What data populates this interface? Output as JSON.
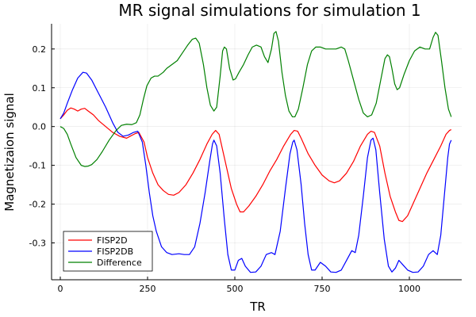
{
  "chart_data": {
    "type": "line",
    "title": "MR signal simulations for simulation 1",
    "xlabel": "TR",
    "ylabel": "Magnetizaion signal",
    "xlim": [
      -25,
      1150
    ],
    "ylim": [
      -0.395,
      0.265
    ],
    "xticks": [
      0,
      250,
      500,
      750,
      1000
    ],
    "xtick_labels": [
      "0",
      "250",
      "500",
      "750",
      "1000"
    ],
    "yticks": [
      -0.3,
      -0.2,
      -0.1,
      0.0,
      0.1,
      0.2
    ],
    "ytick_labels": [
      "-0.3",
      "-0.2",
      "-0.1",
      "0.0",
      "0.1",
      "0.2"
    ],
    "grid": true,
    "legend_position": "bottom-left",
    "series": [
      {
        "name": "FISP2D",
        "color": "#ff0000",
        "points": [
          [
            0,
            0.02
          ],
          [
            10,
            0.03
          ],
          [
            20,
            0.042
          ],
          [
            30,
            0.048
          ],
          [
            40,
            0.045
          ],
          [
            50,
            0.04
          ],
          [
            60,
            0.045
          ],
          [
            70,
            0.047
          ],
          [
            80,
            0.04
          ],
          [
            95,
            0.03
          ],
          [
            110,
            0.015
          ],
          [
            130,
            0.0
          ],
          [
            150,
            -0.015
          ],
          [
            170,
            -0.025
          ],
          [
            190,
            -0.03
          ],
          [
            200,
            -0.025
          ],
          [
            215,
            -0.018
          ],
          [
            225,
            -0.015
          ],
          [
            240,
            -0.04
          ],
          [
            250,
            -0.08
          ],
          [
            265,
            -0.12
          ],
          [
            280,
            -0.15
          ],
          [
            295,
            -0.165
          ],
          [
            310,
            -0.175
          ],
          [
            325,
            -0.177
          ],
          [
            340,
            -0.17
          ],
          [
            360,
            -0.15
          ],
          [
            380,
            -0.12
          ],
          [
            400,
            -0.085
          ],
          [
            420,
            -0.045
          ],
          [
            435,
            -0.02
          ],
          [
            445,
            -0.01
          ],
          [
            455,
            -0.02
          ],
          [
            470,
            -0.08
          ],
          [
            490,
            -0.16
          ],
          [
            505,
            -0.2
          ],
          [
            515,
            -0.22
          ],
          [
            525,
            -0.22
          ],
          [
            540,
            -0.205
          ],
          [
            560,
            -0.18
          ],
          [
            580,
            -0.15
          ],
          [
            600,
            -0.115
          ],
          [
            620,
            -0.085
          ],
          [
            640,
            -0.05
          ],
          [
            660,
            -0.02
          ],
          [
            670,
            -0.01
          ],
          [
            680,
            -0.012
          ],
          [
            690,
            -0.03
          ],
          [
            710,
            -0.07
          ],
          [
            730,
            -0.1
          ],
          [
            750,
            -0.125
          ],
          [
            770,
            -0.14
          ],
          [
            785,
            -0.145
          ],
          [
            800,
            -0.14
          ],
          [
            820,
            -0.12
          ],
          [
            840,
            -0.09
          ],
          [
            860,
            -0.05
          ],
          [
            880,
            -0.02
          ],
          [
            890,
            -0.012
          ],
          [
            900,
            -0.015
          ],
          [
            915,
            -0.05
          ],
          [
            930,
            -0.12
          ],
          [
            945,
            -0.18
          ],
          [
            960,
            -0.22
          ],
          [
            970,
            -0.242
          ],
          [
            980,
            -0.245
          ],
          [
            995,
            -0.23
          ],
          [
            1010,
            -0.2
          ],
          [
            1030,
            -0.16
          ],
          [
            1050,
            -0.12
          ],
          [
            1070,
            -0.085
          ],
          [
            1090,
            -0.05
          ],
          [
            1105,
            -0.02
          ],
          [
            1115,
            -0.01
          ],
          [
            1120,
            -0.008
          ]
        ]
      },
      {
        "name": "FISP2DB",
        "color": "#0000ff",
        "points": [
          [
            0,
            0.02
          ],
          [
            10,
            0.035
          ],
          [
            20,
            0.06
          ],
          [
            35,
            0.095
          ],
          [
            50,
            0.125
          ],
          [
            65,
            0.14
          ],
          [
            75,
            0.138
          ],
          [
            90,
            0.12
          ],
          [
            110,
            0.085
          ],
          [
            130,
            0.05
          ],
          [
            150,
            0.01
          ],
          [
            165,
            -0.015
          ],
          [
            180,
            -0.025
          ],
          [
            195,
            -0.022
          ],
          [
            210,
            -0.015
          ],
          [
            222,
            -0.012
          ],
          [
            235,
            -0.04
          ],
          [
            245,
            -0.1
          ],
          [
            255,
            -0.17
          ],
          [
            265,
            -0.23
          ],
          [
            275,
            -0.27
          ],
          [
            290,
            -0.31
          ],
          [
            305,
            -0.325
          ],
          [
            320,
            -0.33
          ],
          [
            340,
            -0.328
          ],
          [
            355,
            -0.33
          ],
          [
            370,
            -0.33
          ],
          [
            385,
            -0.31
          ],
          [
            400,
            -0.25
          ],
          [
            415,
            -0.17
          ],
          [
            428,
            -0.09
          ],
          [
            436,
            -0.045
          ],
          [
            440,
            -0.035
          ],
          [
            448,
            -0.05
          ],
          [
            458,
            -0.12
          ],
          [
            470,
            -0.24
          ],
          [
            480,
            -0.33
          ],
          [
            490,
            -0.37
          ],
          [
            500,
            -0.37
          ],
          [
            510,
            -0.345
          ],
          [
            520,
            -0.34
          ],
          [
            530,
            -0.36
          ],
          [
            545,
            -0.376
          ],
          [
            560,
            -0.375
          ],
          [
            575,
            -0.36
          ],
          [
            590,
            -0.33
          ],
          [
            605,
            -0.325
          ],
          [
            615,
            -0.33
          ],
          [
            630,
            -0.27
          ],
          [
            645,
            -0.16
          ],
          [
            658,
            -0.07
          ],
          [
            666,
            -0.04
          ],
          [
            670,
            -0.035
          ],
          [
            678,
            -0.06
          ],
          [
            690,
            -0.15
          ],
          [
            700,
            -0.25
          ],
          [
            710,
            -0.33
          ],
          [
            720,
            -0.37
          ],
          [
            730,
            -0.37
          ],
          [
            745,
            -0.35
          ],
          [
            760,
            -0.36
          ],
          [
            775,
            -0.375
          ],
          [
            790,
            -0.376
          ],
          [
            805,
            -0.37
          ],
          [
            820,
            -0.345
          ],
          [
            835,
            -0.32
          ],
          [
            845,
            -0.325
          ],
          [
            855,
            -0.28
          ],
          [
            868,
            -0.18
          ],
          [
            880,
            -0.08
          ],
          [
            890,
            -0.035
          ],
          [
            896,
            -0.03
          ],
          [
            904,
            -0.06
          ],
          [
            915,
            -0.17
          ],
          [
            928,
            -0.29
          ],
          [
            940,
            -0.36
          ],
          [
            950,
            -0.375
          ],
          [
            960,
            -0.365
          ],
          [
            970,
            -0.345
          ],
          [
            980,
            -0.355
          ],
          [
            995,
            -0.37
          ],
          [
            1010,
            -0.376
          ],
          [
            1025,
            -0.375
          ],
          [
            1040,
            -0.36
          ],
          [
            1055,
            -0.33
          ],
          [
            1068,
            -0.32
          ],
          [
            1080,
            -0.33
          ],
          [
            1090,
            -0.28
          ],
          [
            1100,
            -0.18
          ],
          [
            1110,
            -0.08
          ],
          [
            1115,
            -0.045
          ],
          [
            1120,
            -0.035
          ]
        ]
      },
      {
        "name": "Difference",
        "color": "#008000",
        "points": [
          [
            0,
            0.0
          ],
          [
            10,
            -0.005
          ],
          [
            20,
            -0.02
          ],
          [
            30,
            -0.045
          ],
          [
            45,
            -0.08
          ],
          [
            60,
            -0.1
          ],
          [
            70,
            -0.103
          ],
          [
            80,
            -0.102
          ],
          [
            90,
            -0.098
          ],
          [
            105,
            -0.085
          ],
          [
            120,
            -0.065
          ],
          [
            140,
            -0.035
          ],
          [
            160,
            -0.01
          ],
          [
            175,
            0.003
          ],
          [
            190,
            0.006
          ],
          [
            205,
            0.005
          ],
          [
            218,
            0.01
          ],
          [
            228,
            0.03
          ],
          [
            238,
            0.07
          ],
          [
            248,
            0.105
          ],
          [
            260,
            0.125
          ],
          [
            270,
            0.13
          ],
          [
            280,
            0.13
          ],
          [
            295,
            0.14
          ],
          [
            305,
            0.15
          ],
          [
            320,
            0.16
          ],
          [
            335,
            0.17
          ],
          [
            350,
            0.19
          ],
          [
            365,
            0.21
          ],
          [
            378,
            0.225
          ],
          [
            388,
            0.228
          ],
          [
            398,
            0.215
          ],
          [
            410,
            0.16
          ],
          [
            420,
            0.1
          ],
          [
            430,
            0.055
          ],
          [
            440,
            0.04
          ],
          [
            448,
            0.05
          ],
          [
            458,
            0.13
          ],
          [
            465,
            0.195
          ],
          [
            470,
            0.205
          ],
          [
            476,
            0.2
          ],
          [
            485,
            0.15
          ],
          [
            495,
            0.12
          ],
          [
            502,
            0.123
          ],
          [
            512,
            0.14
          ],
          [
            525,
            0.16
          ],
          [
            538,
            0.185
          ],
          [
            550,
            0.205
          ],
          [
            562,
            0.21
          ],
          [
            575,
            0.205
          ],
          [
            585,
            0.18
          ],
          [
            595,
            0.165
          ],
          [
            605,
            0.2
          ],
          [
            612,
            0.24
          ],
          [
            618,
            0.245
          ],
          [
            625,
            0.22
          ],
          [
            635,
            0.14
          ],
          [
            645,
            0.08
          ],
          [
            655,
            0.04
          ],
          [
            665,
            0.025
          ],
          [
            672,
            0.025
          ],
          [
            682,
            0.045
          ],
          [
            695,
            0.1
          ],
          [
            708,
            0.16
          ],
          [
            720,
            0.195
          ],
          [
            732,
            0.205
          ],
          [
            745,
            0.205
          ],
          [
            760,
            0.2
          ],
          [
            775,
            0.2
          ],
          [
            790,
            0.2
          ],
          [
            805,
            0.205
          ],
          [
            815,
            0.2
          ],
          [
            825,
            0.17
          ],
          [
            840,
            0.12
          ],
          [
            855,
            0.07
          ],
          [
            868,
            0.035
          ],
          [
            880,
            0.025
          ],
          [
            892,
            0.03
          ],
          [
            905,
            0.06
          ],
          [
            918,
            0.12
          ],
          [
            930,
            0.175
          ],
          [
            937,
            0.185
          ],
          [
            943,
            0.18
          ],
          [
            950,
            0.15
          ],
          [
            958,
            0.11
          ],
          [
            965,
            0.095
          ],
          [
            972,
            0.1
          ],
          [
            985,
            0.135
          ],
          [
            1000,
            0.17
          ],
          [
            1015,
            0.195
          ],
          [
            1030,
            0.205
          ],
          [
            1045,
            0.2
          ],
          [
            1058,
            0.2
          ],
          [
            1068,
            0.23
          ],
          [
            1075,
            0.243
          ],
          [
            1082,
            0.235
          ],
          [
            1092,
            0.17
          ],
          [
            1102,
            0.1
          ],
          [
            1112,
            0.045
          ],
          [
            1120,
            0.025
          ]
        ]
      }
    ]
  }
}
